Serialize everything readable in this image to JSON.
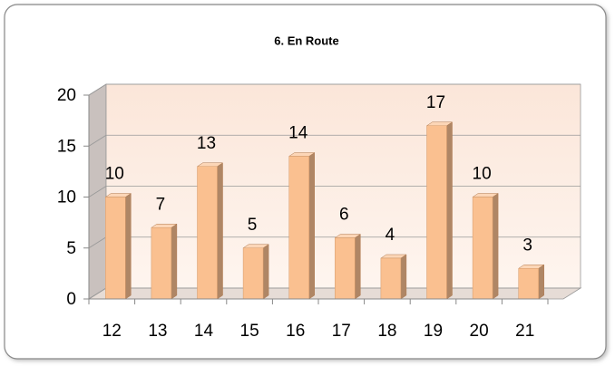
{
  "chart_data": {
    "type": "bar",
    "title": "6. En Route",
    "categories": [
      "12",
      "13",
      "14",
      "15",
      "16",
      "17",
      "18",
      "19",
      "20",
      "21"
    ],
    "values": [
      10,
      7,
      13,
      5,
      14,
      6,
      4,
      17,
      10,
      3
    ],
    "color": "#fac090",
    "ylim": [
      0,
      20
    ],
    "yticks": [
      0,
      5,
      10,
      15,
      20
    ],
    "grid": true
  }
}
